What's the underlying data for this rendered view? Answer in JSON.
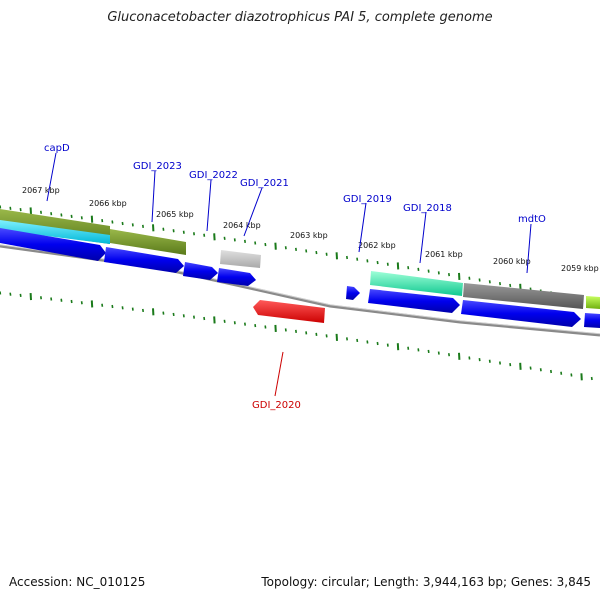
{
  "title": "Gluconacetobacter diazotrophicus PAI 5, complete genome",
  "accession": "Accession: NC_010125",
  "summary": "Topology: circular; Length: 3,944,163 bp; Genes: 3,845",
  "colors": {
    "tick": "#1a7a1a",
    "label_forward": "#0000cc",
    "label_reverse": "#cc0000",
    "backbone": "#888888"
  },
  "kbp_labels": [
    "2067 kbp",
    "2066 kbp",
    "2065 kbp",
    "2064 kbp",
    "2063 kbp",
    "2062 kbp",
    "2061 kbp",
    "2060 kbp",
    "2059 kbp"
  ],
  "gene_labels": [
    {
      "text": "capD",
      "strand": "forward"
    },
    {
      "text": "GDI_2023",
      "strand": "forward"
    },
    {
      "text": "GDI_2022",
      "strand": "forward"
    },
    {
      "text": "GDI_2021",
      "strand": "forward"
    },
    {
      "text": "GDI_2019",
      "strand": "forward"
    },
    {
      "text": "GDI_2018",
      "strand": "forward"
    },
    {
      "text": "mdtO",
      "strand": "forward"
    },
    {
      "text": "GDI_2020",
      "strand": "reverse"
    }
  ]
}
